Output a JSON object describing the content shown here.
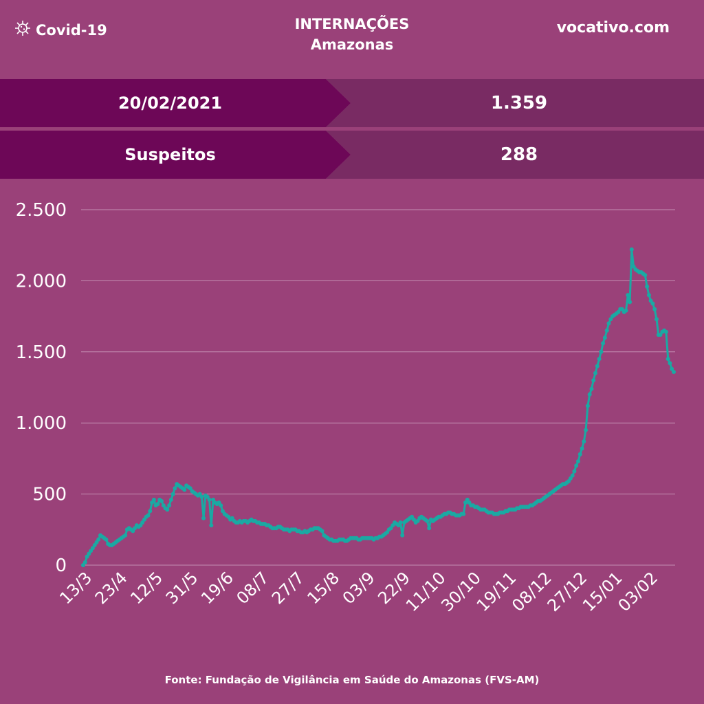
{
  "header": {
    "brand_label": "Covid-19",
    "brand_icon": "virus-icon",
    "title_line1": "INTERNAÇÕES",
    "title_line2": "Amazonas",
    "site": "vocativo.com"
  },
  "summary": [
    {
      "label": "20/02/2021",
      "value": "1.359"
    },
    {
      "label": "Suspeitos",
      "value": "288"
    }
  ],
  "colors": {
    "background": "#9a4179",
    "label_band": "#6d0757",
    "value_band": "#792b63",
    "line": "#1aa9a3",
    "grid": "#c490b4"
  },
  "source": "Fonte: Fundação de Vigilância em Saúde do Amazonas (FVS-AM)",
  "chart_data": {
    "type": "line",
    "title": "",
    "xlabel": "",
    "ylabel": "",
    "ylim": [
      0,
      2500
    ],
    "yticks": [
      0,
      500,
      1000,
      1500,
      2000,
      2500
    ],
    "ytick_labels": [
      "0",
      "500",
      "1.000",
      "1.500",
      "2.000",
      "2.500"
    ],
    "grid": true,
    "x_tick_labels": [
      "13/3",
      "23/4",
      "12/5",
      "31/5",
      "19/6",
      "08/7",
      "27/7",
      "15/8",
      "03/9",
      "22/9",
      "11/10",
      "30/10",
      "19/11",
      "08/12",
      "27/12",
      "15/01",
      "03/02"
    ],
    "series": [
      {
        "values": [
          0,
          20,
          60,
          80,
          100,
          120,
          140,
          160,
          180,
          210,
          200,
          190,
          180,
          150,
          140,
          140,
          150,
          160,
          170,
          180,
          190,
          200,
          210,
          250,
          260,
          250,
          240,
          260,
          280,
          270,
          280,
          300,
          320,
          340,
          350,
          380,
          440,
          460,
          420,
          430,
          460,
          450,
          420,
          400,
          390,
          420,
          460,
          500,
          540,
          570,
          560,
          550,
          540,
          530,
          560,
          550,
          540,
          520,
          510,
          500,
          490,
          500,
          480,
          330,
          490,
          480,
          460,
          280,
          460,
          440,
          430,
          440,
          420,
          380,
          360,
          350,
          340,
          320,
          330,
          310,
          300,
          300,
          310,
          300,
          310,
          310,
          300,
          310,
          320,
          310,
          310,
          300,
          300,
          290,
          290,
          290,
          280,
          280,
          270,
          260,
          260,
          260,
          270,
          270,
          260,
          250,
          250,
          250,
          240,
          250,
          250,
          250,
          240,
          240,
          230,
          230,
          240,
          230,
          240,
          250,
          250,
          260,
          260,
          260,
          250,
          240,
          210,
          200,
          190,
          180,
          180,
          170,
          170,
          170,
          180,
          180,
          180,
          170,
          170,
          180,
          190,
          190,
          190,
          190,
          180,
          180,
          190,
          190,
          190,
          190,
          190,
          190,
          180,
          190,
          190,
          200,
          200,
          210,
          220,
          230,
          250,
          260,
          280,
          300,
          290,
          280,
          300,
          210,
          300,
          310,
          320,
          330,
          340,
          320,
          300,
          310,
          330,
          340,
          330,
          320,
          310,
          260,
          320,
          310,
          320,
          330,
          340,
          340,
          350,
          360,
          360,
          370,
          370,
          360,
          360,
          350,
          350,
          350,
          360,
          360,
          440,
          460,
          440,
          420,
          420,
          410,
          410,
          400,
          390,
          390,
          390,
          380,
          370,
          370,
          370,
          360,
          360,
          360,
          370,
          370,
          370,
          380,
          380,
          390,
          390,
          390,
          390,
          400,
          400,
          410,
          410,
          410,
          410,
          410,
          420,
          420,
          430,
          440,
          450,
          450,
          460,
          470,
          480,
          490,
          500,
          510,
          520,
          530,
          540,
          550,
          560,
          570,
          570,
          580,
          590,
          610,
          630,
          660,
          700,
          730,
          780,
          820,
          870,
          950,
          1120,
          1200,
          1240,
          1300,
          1350,
          1400,
          1450,
          1500,
          1560,
          1600,
          1650,
          1700,
          1730,
          1750,
          1760,
          1770,
          1780,
          1800,
          1800,
          1780,
          1790,
          1900,
          1850,
          2220,
          2100,
          2080,
          2070,
          2060,
          2060,
          2050,
          2040,
          1960,
          1900,
          1860,
          1840,
          1800,
          1730,
          1620,
          1620,
          1640,
          1650,
          1640,
          1450,
          1420,
          1380,
          1359
        ]
      }
    ]
  }
}
